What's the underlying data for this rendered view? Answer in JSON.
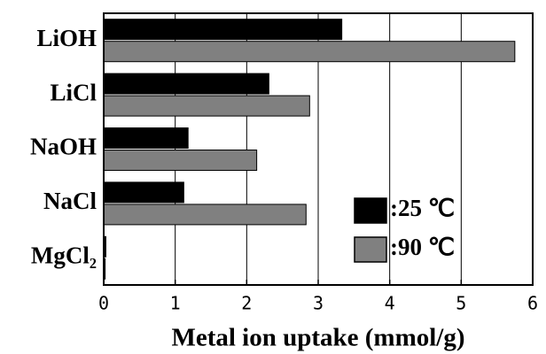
{
  "chart_data": {
    "type": "hbar",
    "categories": [
      "LiOH",
      "LiCl",
      "NaOH",
      "NaCl",
      "MgCl₂"
    ],
    "series": [
      {
        "name": ":25 ℃",
        "color": "#000000",
        "values": [
          3.33,
          2.31,
          1.18,
          1.12,
          0.03
        ]
      },
      {
        "name": ":90 ℃",
        "color": "#808080",
        "values": [
          5.75,
          2.88,
          2.14,
          2.83,
          0.02
        ]
      }
    ],
    "xlabel": "Metal ion uptake (mmol/g)",
    "xlim": [
      0,
      6
    ],
    "xticks": [
      0,
      1,
      2,
      3,
      4,
      5,
      6
    ],
    "grid": true,
    "legend": "lower right"
  }
}
